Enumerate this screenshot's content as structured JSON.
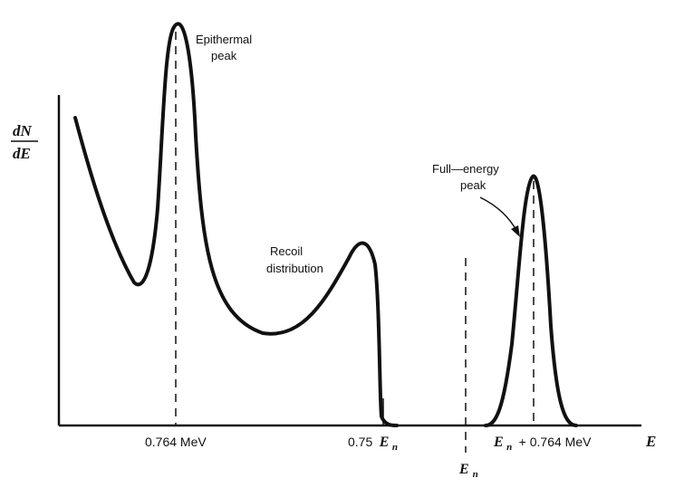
{
  "chart_data": {
    "type": "line",
    "xlabel": "E",
    "ylabel_numerator": "dN",
    "ylabel_denominator": "dE",
    "ticks": {
      "epithermal": "0.764 MeV",
      "edge_prefix": "0.75",
      "edge_symbol": "E",
      "edge_sub": "n",
      "en_symbol": "E",
      "en_sub": "n",
      "full_symbol": "E",
      "full_sub": "n",
      "full_suffix": " + 0.764 MeV"
    },
    "annotations": {
      "epithermal": [
        "Epithermal",
        "peak"
      ],
      "recoil": [
        "Recoil",
        "distribution"
      ],
      "full_energy": [
        "Full—energy",
        "peak"
      ]
    },
    "grid": false,
    "legend": "none",
    "series": [
      {
        "values": "qualitative spectrum: falling low-energy tail, epithermal peak at 0.764 MeV, broad recoil distribution ending at 0.75 En, full-energy peak at En + 0.764 MeV"
      }
    ]
  }
}
